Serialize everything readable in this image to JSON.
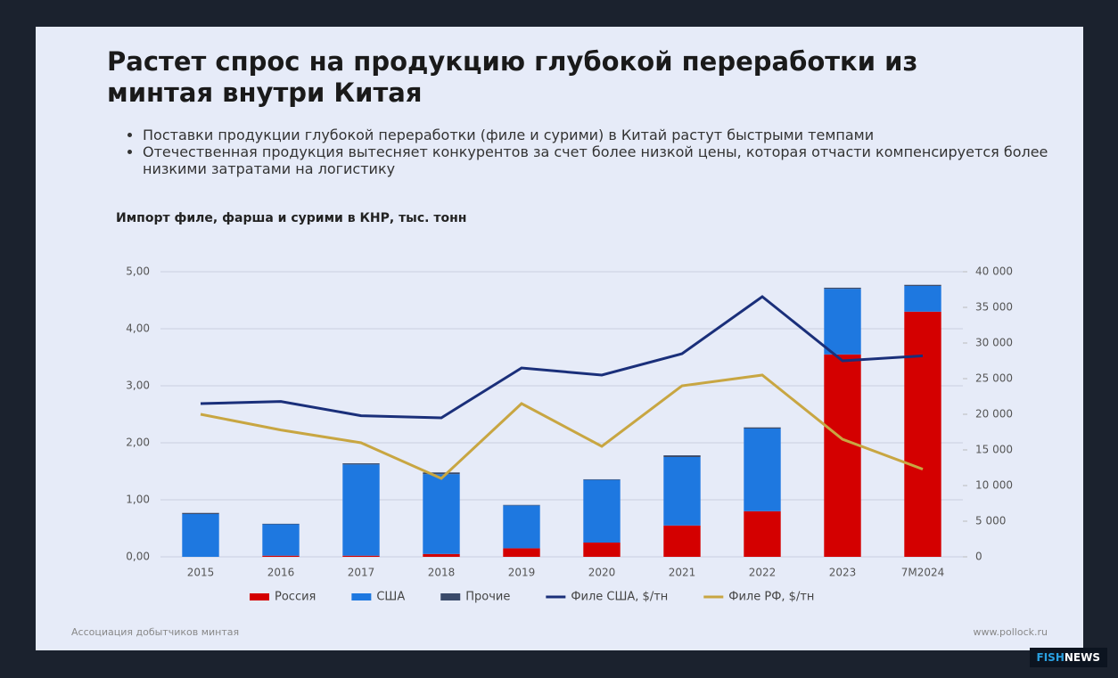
{
  "slide": {
    "title": "Растет спрос на продукцию глубокой переработки из минтая внутри Китая",
    "bullets": [
      "Поставки продукции глубокой переработки (филе и сурими) в Китай растут быстрыми темпами",
      "Отечественная продукция вытесняет конкурентов за счет более низкой цены, которая отчасти компенсируется более низкими затратами на логистику"
    ],
    "footer_left": "Ассоциация добытчиков минтая",
    "footer_right": "www.pollock.ru",
    "badge": [
      "FISH",
      "NEWS"
    ]
  },
  "chart_data": {
    "type": "bar",
    "title": "Импорт филе, фарша и сурими в КНР, тыс. тонн",
    "categories": [
      "2015",
      "2016",
      "2017",
      "2018",
      "2019",
      "2020",
      "2021",
      "2022",
      "2023",
      "7М2024"
    ],
    "stacked": true,
    "series": [
      {
        "name": "Россия",
        "color": "#d40000",
        "values": [
          0,
          0.02,
          0.02,
          0.05,
          0.15,
          0.25,
          0.55,
          0.8,
          3.55,
          4.3
        ]
      },
      {
        "name": "США",
        "color": "#1e78e0",
        "values": [
          0.75,
          0.55,
          1.6,
          1.4,
          0.75,
          1.1,
          1.2,
          1.45,
          1.15,
          0.45
        ]
      },
      {
        "name": "Прочие",
        "color": "#3a4a6a",
        "values": [
          0.02,
          0.01,
          0.02,
          0.03,
          0.01,
          0.01,
          0.03,
          0.02,
          0.02,
          0.02
        ]
      },
      {
        "name": "Филе США, $/тн",
        "type": "line",
        "axis": "y2",
        "color": "#1a2f7a",
        "values": [
          21500,
          21800,
          19800,
          19500,
          26500,
          25500,
          28500,
          36500,
          27500,
          28200
        ]
      },
      {
        "name": "Филе РФ, $/тн",
        "type": "line",
        "axis": "y2",
        "color": "#c8a642",
        "values": [
          20000,
          17800,
          16000,
          11000,
          21500,
          15500,
          24000,
          25500,
          16500,
          12300
        ]
      }
    ],
    "ylim": [
      0,
      5
    ],
    "yticks": [
      {
        "value": 0,
        "label": "0,00"
      },
      {
        "value": 1,
        "label": "1,00"
      },
      {
        "value": 2,
        "label": "2,00"
      },
      {
        "value": 3,
        "label": "3,00"
      },
      {
        "value": 4,
        "label": "4,00"
      },
      {
        "value": 5,
        "label": "5,00"
      }
    ],
    "y2lim": [
      0,
      40000
    ],
    "y2ticks": [
      0,
      {
        "value": 5000,
        "label": "5 000"
      },
      {
        "value": 10000,
        "label": "10 000"
      },
      {
        "value": 15000,
        "label": "15 000"
      },
      {
        "value": 20000,
        "label": "20 000"
      },
      {
        "value": 25000,
        "label": "25 000"
      },
      {
        "value": 30000,
        "label": "30 000"
      },
      {
        "value": 35000,
        "label": "35 000"
      },
      {
        "value": 40000,
        "label": "40 000"
      }
    ],
    "grid": true,
    "legend": "bottom"
  }
}
